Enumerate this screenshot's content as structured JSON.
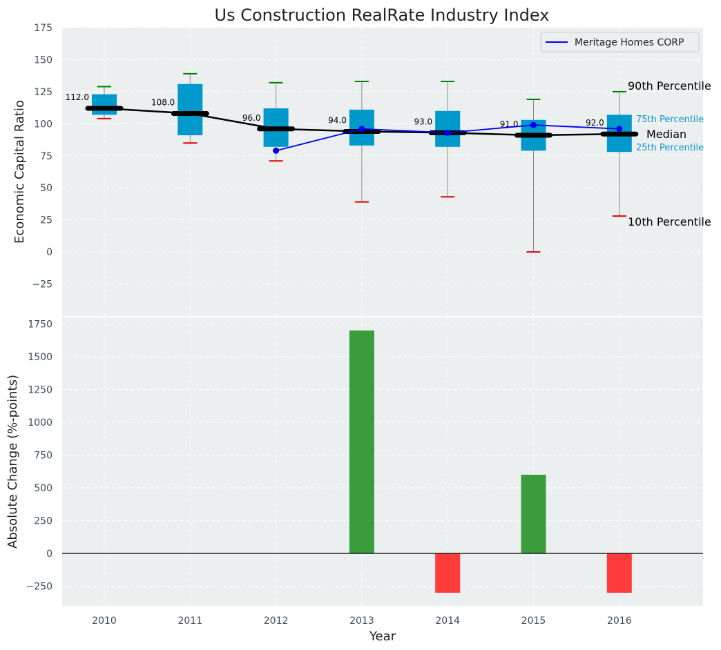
{
  "chart_data": [
    {
      "type": "box",
      "title": "Us Construction RealRate Industry Index",
      "ylabel": "Economic Capital Ratio",
      "ylim": [
        -50,
        175
      ],
      "yticks": [
        -25,
        0,
        25,
        50,
        75,
        100,
        125,
        150,
        175
      ],
      "grid": true,
      "legend": {
        "position": "top-right",
        "entries": [
          "Meritage Homes CORP"
        ]
      },
      "categories": [
        "2010",
        "2011",
        "2012",
        "2013",
        "2014",
        "2015",
        "2016"
      ],
      "p10": [
        104,
        85,
        71,
        39,
        43,
        0,
        28
      ],
      "p25": [
        107,
        91,
        82,
        83,
        82,
        79,
        78
      ],
      "median": [
        112,
        108,
        96,
        94,
        93,
        91,
        92
      ],
      "median_labels": [
        "112.0",
        "108.0",
        "96.0",
        "94.0",
        "93.0",
        "91.0",
        "92.0"
      ],
      "p75": [
        123,
        131,
        112,
        111,
        110,
        103,
        107
      ],
      "p90": [
        129,
        139,
        132,
        133,
        133,
        119,
        125
      ],
      "series": [
        {
          "name": "Meritage Homes CORP",
          "color": "#0000ee",
          "values": [
            null,
            null,
            79,
            96,
            93,
            99,
            96
          ]
        }
      ],
      "annotations": {
        "p90": "90th Percentile",
        "p75": "75th Percentile",
        "median": "Median",
        "p25": "25th Percentile",
        "p10": "10th Percentile"
      },
      "colors": {
        "box": "#0099cc",
        "p90_cap": "#008000",
        "p10_cap": "#dd0000",
        "median_line": "#000000",
        "background": "#ebeff0"
      }
    },
    {
      "type": "bar",
      "ylabel": "Absolute Change (%-points)",
      "xlabel": "Year",
      "ylim": [
        -400,
        1800
      ],
      "yticks": [
        -250,
        0,
        250,
        500,
        750,
        1000,
        1250,
        1500,
        1750
      ],
      "grid": true,
      "categories": [
        "2010",
        "2011",
        "2012",
        "2013",
        "2014",
        "2015",
        "2016"
      ],
      "values": [
        0,
        0,
        0,
        1700,
        -300,
        600,
        -300
      ],
      "colors": {
        "positive": "#3a9c3a",
        "negative": "#ff3b3b"
      }
    }
  ]
}
